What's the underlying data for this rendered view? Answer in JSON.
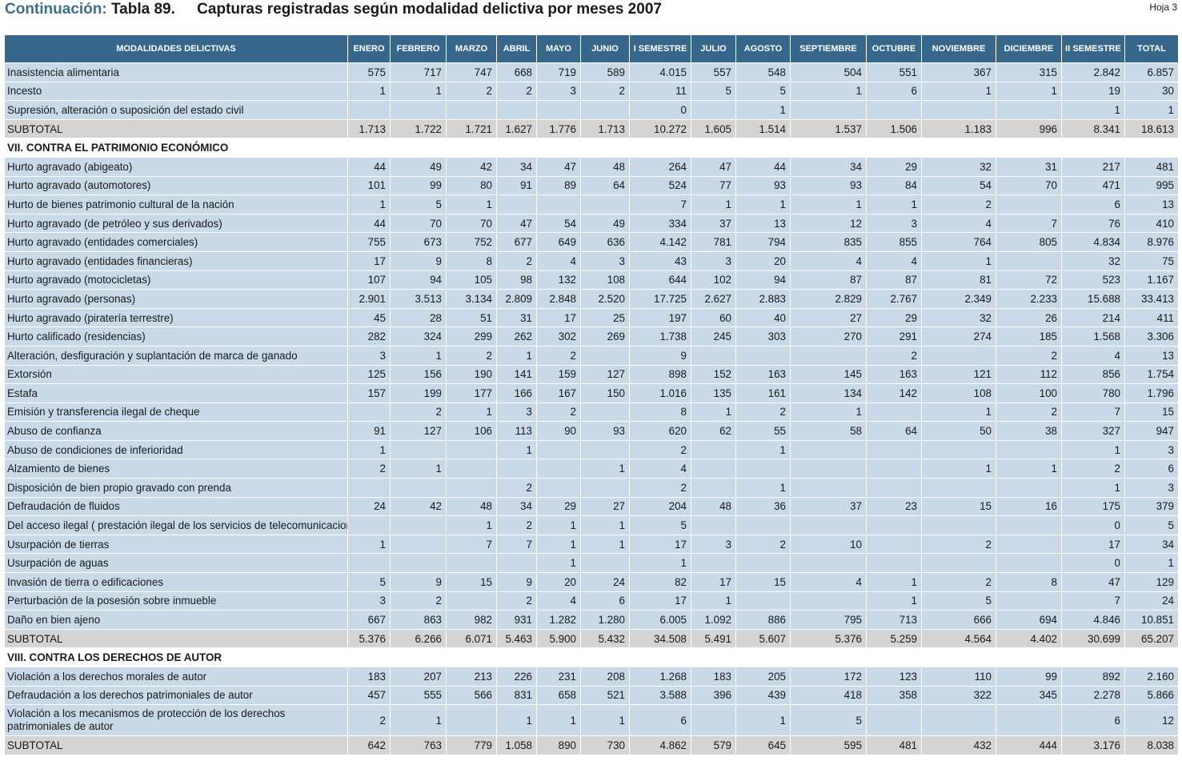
{
  "header": {
    "continuation": "Continuación:",
    "table_number": "Tabla 89.",
    "table_title": "Capturas registradas según modalidad delictiva por meses 2007",
    "sheet": "Hoja 3"
  },
  "columns": [
    "MODALIDADES DELICTIVAS",
    "ENERO",
    "FEBRERO",
    "MARZO",
    "ABRIL",
    "MAYO",
    "JUNIO",
    "I SEMESTRE",
    "JULIO",
    "AGOSTO",
    "SEPTIEMBRE",
    "OCTUBRE",
    "NOVIEMBRE",
    "DICIEMBRE",
    "II SEMESTRE",
    "TOTAL"
  ],
  "rows": [
    {
      "type": "row",
      "cells": [
        "Inasistencia alimentaria",
        "575",
        "717",
        "747",
        "668",
        "719",
        "589",
        "4.015",
        "557",
        "548",
        "504",
        "551",
        "367",
        "315",
        "2.842",
        "6.857"
      ]
    },
    {
      "type": "row",
      "cells": [
        "Incesto",
        "1",
        "1",
        "2",
        "2",
        "3",
        "2",
        "11",
        "5",
        "5",
        "1",
        "6",
        "1",
        "1",
        "19",
        "30"
      ]
    },
    {
      "type": "row",
      "cells": [
        "Supresión, alteración o suposición del estado civil",
        "",
        "",
        "",
        "",
        "",
        "",
        "0",
        "",
        "1",
        "",
        "",
        "",
        "",
        "1",
        "1"
      ]
    },
    {
      "type": "subtotal",
      "cells": [
        "SUBTOTAL",
        "1.713",
        "1.722",
        "1.721",
        "1.627",
        "1.776",
        "1.713",
        "10.272",
        "1.605",
        "1.514",
        "1.537",
        "1.506",
        "1.183",
        "996",
        "8.341",
        "18.613"
      ]
    },
    {
      "type": "section",
      "cells": [
        "VII. CONTRA EL PATRIMONIO ECONÓMICO"
      ]
    },
    {
      "type": "row",
      "cells": [
        "Hurto agravado (abigeato)",
        "44",
        "49",
        "42",
        "34",
        "47",
        "48",
        "264",
        "47",
        "44",
        "34",
        "29",
        "32",
        "31",
        "217",
        "481"
      ]
    },
    {
      "type": "row",
      "cells": [
        "Hurto agravado (automotores)",
        "101",
        "99",
        "80",
        "91",
        "89",
        "64",
        "524",
        "77",
        "93",
        "93",
        "84",
        "54",
        "70",
        "471",
        "995"
      ]
    },
    {
      "type": "row",
      "cells": [
        "Hurto de bienes patrimonio cultural de la nación",
        "1",
        "5",
        "1",
        "",
        "",
        "",
        "7",
        "1",
        "1",
        "1",
        "1",
        "2",
        "",
        "6",
        "13"
      ]
    },
    {
      "type": "row",
      "cells": [
        "Hurto agravado (de petróleo y sus derivados)",
        "44",
        "70",
        "70",
        "47",
        "54",
        "49",
        "334",
        "37",
        "13",
        "12",
        "3",
        "4",
        "7",
        "76",
        "410"
      ]
    },
    {
      "type": "row",
      "cells": [
        "Hurto agravado (entidades comerciales)",
        "755",
        "673",
        "752",
        "677",
        "649",
        "636",
        "4.142",
        "781",
        "794",
        "835",
        "855",
        "764",
        "805",
        "4.834",
        "8.976"
      ]
    },
    {
      "type": "row",
      "cells": [
        "Hurto agravado (entidades financieras)",
        "17",
        "9",
        "8",
        "2",
        "4",
        "3",
        "43",
        "3",
        "20",
        "4",
        "4",
        "1",
        "",
        "32",
        "75"
      ]
    },
    {
      "type": "row",
      "cells": [
        "Hurto agravado (motocicletas)",
        "107",
        "94",
        "105",
        "98",
        "132",
        "108",
        "644",
        "102",
        "94",
        "87",
        "87",
        "81",
        "72",
        "523",
        "1.167"
      ]
    },
    {
      "type": "row",
      "cells": [
        "Hurto agravado (personas)",
        "2.901",
        "3.513",
        "3.134",
        "2.809",
        "2.848",
        "2.520",
        "17.725",
        "2.627",
        "2.883",
        "2.829",
        "2.767",
        "2.349",
        "2.233",
        "15.688",
        "33.413"
      ]
    },
    {
      "type": "row",
      "cells": [
        "Hurto agravado (piratería terrestre)",
        "45",
        "28",
        "51",
        "31",
        "17",
        "25",
        "197",
        "60",
        "40",
        "27",
        "29",
        "32",
        "26",
        "214",
        "411"
      ]
    },
    {
      "type": "row",
      "cells": [
        "Hurto calificado (residencias)",
        "282",
        "324",
        "299",
        "262",
        "302",
        "269",
        "1.738",
        "245",
        "303",
        "270",
        "291",
        "274",
        "185",
        "1.568",
        "3.306"
      ]
    },
    {
      "type": "row",
      "cells": [
        "Alteración, desfiguración y suplantación de marca de ganado",
        "3",
        "1",
        "2",
        "1",
        "2",
        "",
        "9",
        "",
        "",
        "",
        "2",
        "",
        "2",
        "4",
        "13"
      ]
    },
    {
      "type": "row",
      "cells": [
        "Extorsión",
        "125",
        "156",
        "190",
        "141",
        "159",
        "127",
        "898",
        "152",
        "163",
        "145",
        "163",
        "121",
        "112",
        "856",
        "1.754"
      ]
    },
    {
      "type": "row",
      "cells": [
        "Estafa",
        "157",
        "199",
        "177",
        "166",
        "167",
        "150",
        "1.016",
        "135",
        "161",
        "134",
        "142",
        "108",
        "100",
        "780",
        "1.796"
      ]
    },
    {
      "type": "row",
      "cells": [
        "Emisión y transferencia ilegal de cheque",
        "",
        "2",
        "1",
        "3",
        "2",
        "",
        "8",
        "1",
        "2",
        "1",
        "",
        "1",
        "2",
        "7",
        "15"
      ]
    },
    {
      "type": "row",
      "cells": [
        "Abuso de confianza",
        "91",
        "127",
        "106",
        "113",
        "90",
        "93",
        "620",
        "62",
        "55",
        "58",
        "64",
        "50",
        "38",
        "327",
        "947"
      ]
    },
    {
      "type": "row",
      "cells": [
        "Abuso de condiciones de inferioridad",
        "1",
        "",
        "",
        "1",
        "",
        "",
        "2",
        "",
        "1",
        "",
        "",
        "",
        "",
        "1",
        "3"
      ]
    },
    {
      "type": "row",
      "cells": [
        "Alzamiento de bienes",
        "2",
        "1",
        "",
        "",
        "",
        "1",
        "4",
        "",
        "",
        "",
        "",
        "1",
        "1",
        "2",
        "6"
      ]
    },
    {
      "type": "row",
      "cells": [
        "Disposición de bien propio gravado con prenda",
        "",
        "",
        "",
        "2",
        "",
        "",
        "2",
        "",
        "1",
        "",
        "",
        "",
        "",
        "1",
        "3"
      ]
    },
    {
      "type": "row",
      "cells": [
        "Defraudación de fluidos",
        "24",
        "42",
        "48",
        "34",
        "29",
        "27",
        "204",
        "48",
        "36",
        "37",
        "23",
        "15",
        "16",
        "175",
        "379"
      ]
    },
    {
      "type": "row",
      "cells": [
        "Del acceso ilegal ( prestación ilegal de los servicios de telecomunicaciones)",
        "",
        "",
        "1",
        "2",
        "1",
        "1",
        "5",
        "",
        "",
        "",
        "",
        "",
        "",
        "0",
        "5"
      ]
    },
    {
      "type": "row",
      "cells": [
        "Usurpación de tierras",
        "1",
        "",
        "7",
        "7",
        "1",
        "1",
        "17",
        "3",
        "2",
        "10",
        "",
        "2",
        "",
        "17",
        "34"
      ]
    },
    {
      "type": "row",
      "cells": [
        "Usurpación de aguas",
        "",
        "",
        "",
        "",
        "1",
        "",
        "1",
        "",
        "",
        "",
        "",
        "",
        "",
        "0",
        "1"
      ]
    },
    {
      "type": "row",
      "cells": [
        "Invasión de tierra o edificaciones",
        "5",
        "9",
        "15",
        "9",
        "20",
        "24",
        "82",
        "17",
        "15",
        "4",
        "1",
        "2",
        "8",
        "47",
        "129"
      ]
    },
    {
      "type": "row",
      "cells": [
        "Perturbación de la posesión sobre inmueble",
        "3",
        "2",
        "",
        "2",
        "4",
        "6",
        "17",
        "1",
        "",
        "",
        "1",
        "5",
        "",
        "7",
        "24"
      ]
    },
    {
      "type": "row",
      "cells": [
        "Daño en bien ajeno",
        "667",
        "863",
        "982",
        "931",
        "1.282",
        "1.280",
        "6.005",
        "1.092",
        "886",
        "795",
        "713",
        "666",
        "694",
        "4.846",
        "10.851"
      ]
    },
    {
      "type": "subtotal",
      "cells": [
        "SUBTOTAL",
        "5.376",
        "6.266",
        "6.071",
        "5.463",
        "5.900",
        "5.432",
        "34.508",
        "5.491",
        "5.607",
        "5.376",
        "5.259",
        "4.564",
        "4.402",
        "30.699",
        "65.207"
      ]
    },
    {
      "type": "section",
      "cells": [
        "VIII. CONTRA LOS DERECHOS DE AUTOR"
      ]
    },
    {
      "type": "row",
      "cells": [
        "Violación a los derechos morales de autor",
        "183",
        "207",
        "213",
        "226",
        "231",
        "208",
        "1.268",
        "183",
        "205",
        "172",
        "123",
        "110",
        "99",
        "892",
        "2.160"
      ]
    },
    {
      "type": "row",
      "cells": [
        "Defraudación a los derechos patrimoniales de autor",
        "457",
        "555",
        "566",
        "831",
        "658",
        "521",
        "3.588",
        "396",
        "439",
        "418",
        "358",
        "322",
        "345",
        "2.278",
        "5.866"
      ]
    },
    {
      "type": "row",
      "tall": true,
      "cells": [
        "Violación a los mecanismos de protección de los derechos patrimoniales de autor",
        "2",
        "1",
        "",
        "1",
        "1",
        "1",
        "6",
        "",
        "1",
        "5",
        "",
        "",
        "",
        "6",
        "12"
      ]
    },
    {
      "type": "subtotal",
      "cells": [
        "SUBTOTAL",
        "642",
        "763",
        "779",
        "1.058",
        "890",
        "730",
        "4.862",
        "579",
        "645",
        "595",
        "481",
        "432",
        "444",
        "3.176",
        "8.038"
      ]
    }
  ]
}
